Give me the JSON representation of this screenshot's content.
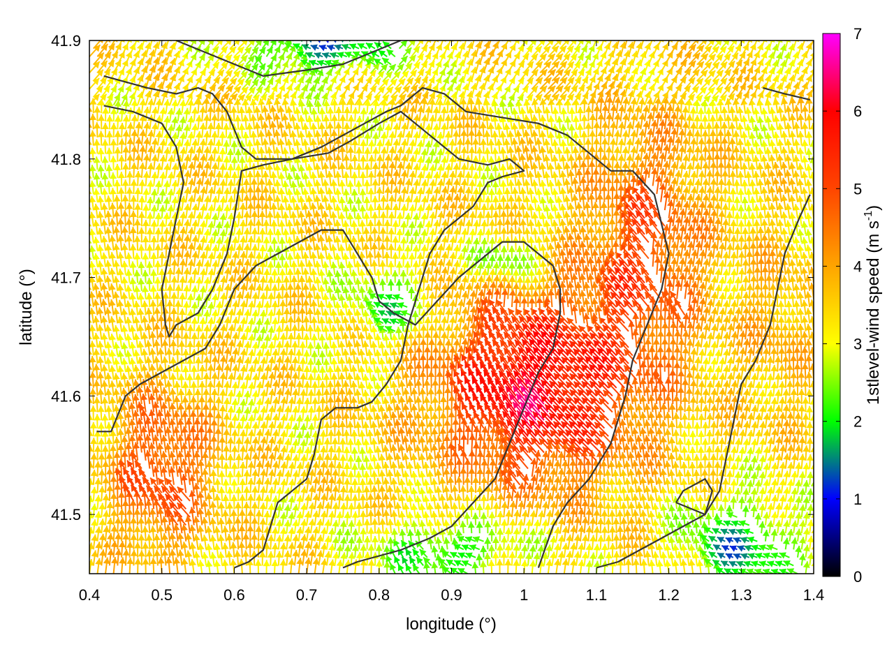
{
  "chart_data": {
    "type": "vector-field",
    "xlabel": "longitude (°)",
    "ylabel": "latitude (°)",
    "colorbar_label": "1stlevel-wind speed (m s",
    "colorbar_label_superscript": "-1",
    "colorbar_label_close": ")",
    "xlim": [
      0.4,
      1.4
    ],
    "ylim": [
      41.45,
      41.9
    ],
    "x_ticks": [
      0.4,
      0.5,
      0.6,
      0.7,
      0.8,
      0.9,
      1.0,
      1.1,
      1.2,
      1.3,
      1.4
    ],
    "x_tick_labels": [
      "0.4",
      "0.5",
      "0.6",
      "0.7",
      "0.8",
      "0.9",
      "1",
      "1.1",
      "1.2",
      "1.3",
      "1.4"
    ],
    "y_ticks": [
      41.5,
      41.6,
      41.7,
      41.8,
      41.9
    ],
    "y_tick_labels": [
      "41.5",
      "41.6",
      "41.7",
      "41.8",
      "41.9"
    ],
    "cb_range": [
      0,
      7
    ],
    "cb_ticks": [
      0,
      1,
      2,
      3,
      4,
      5,
      6,
      7
    ],
    "cb_tick_labels": [
      "0",
      "1",
      "2",
      "3",
      "4",
      "5",
      "6",
      "7"
    ],
    "palette": [
      [
        0,
        "#000000"
      ],
      [
        1,
        "#0000ff"
      ],
      [
        1.5,
        "#008080"
      ],
      [
        2,
        "#00ff00"
      ],
      [
        3,
        "#ffff00"
      ],
      [
        4,
        "#ffa500"
      ],
      [
        5,
        "#ff4500"
      ],
      [
        6,
        "#ff0000"
      ],
      [
        7,
        "#ff00ff"
      ]
    ],
    "contour_color": "#333333",
    "contours": [
      [
        [
          0.42,
          41.87
        ],
        [
          0.48,
          41.86
        ],
        [
          0.52,
          41.855
        ],
        [
          0.55,
          41.86
        ],
        [
          0.57,
          41.855
        ],
        [
          0.59,
          41.84
        ],
        [
          0.61,
          41.81
        ],
        [
          0.63,
          41.8
        ],
        [
          0.68,
          41.8
        ],
        [
          0.72,
          41.81
        ],
        [
          0.75,
          41.82
        ],
        [
          0.78,
          41.83
        ],
        [
          0.81,
          41.84
        ],
        [
          0.83,
          41.845
        ],
        [
          0.86,
          41.86
        ],
        [
          0.89,
          41.855
        ],
        [
          0.92,
          41.84
        ],
        [
          0.97,
          41.835
        ],
        [
          1.02,
          41.83
        ],
        [
          1.06,
          41.82
        ],
        [
          1.09,
          41.805
        ],
        [
          1.12,
          41.79
        ],
        [
          1.15,
          41.79
        ],
        [
          1.18,
          41.77
        ],
        [
          1.2,
          41.72
        ],
        [
          1.19,
          41.69
        ],
        [
          1.17,
          41.66
        ],
        [
          1.15,
          41.63
        ],
        [
          1.14,
          41.6
        ],
        [
          1.12,
          41.56
        ],
        [
          1.09,
          41.53
        ],
        [
          1.06,
          41.51
        ],
        [
          1.04,
          41.49
        ],
        [
          1.02,
          41.455
        ]
      ],
      [
        [
          0.42,
          41.845
        ],
        [
          0.46,
          41.84
        ],
        [
          0.5,
          41.83
        ],
        [
          0.52,
          41.81
        ],
        [
          0.53,
          41.78
        ],
        [
          0.52,
          41.75
        ],
        [
          0.51,
          41.72
        ],
        [
          0.5,
          41.69
        ],
        [
          0.505,
          41.66
        ],
        [
          0.51,
          41.65
        ],
        [
          0.52,
          41.66
        ],
        [
          0.55,
          41.67
        ],
        [
          0.57,
          41.69
        ],
        [
          0.59,
          41.72
        ],
        [
          0.6,
          41.75
        ],
        [
          0.61,
          41.79
        ],
        [
          0.64,
          41.795
        ],
        [
          0.68,
          41.8
        ],
        [
          0.73,
          41.805
        ],
        [
          0.76,
          41.815
        ],
        [
          0.8,
          41.83
        ],
        [
          0.83,
          41.84
        ],
        [
          0.86,
          41.825
        ],
        [
          0.88,
          41.815
        ],
        [
          0.91,
          41.8
        ],
        [
          0.95,
          41.795
        ],
        [
          0.98,
          41.8
        ],
        [
          1.0,
          41.79
        ],
        [
          0.97,
          41.785
        ],
        [
          0.95,
          41.78
        ],
        [
          0.93,
          41.76
        ],
        [
          0.91,
          41.75
        ],
        [
          0.89,
          41.74
        ],
        [
          0.87,
          41.72
        ],
        [
          0.86,
          41.7
        ],
        [
          0.85,
          41.68
        ],
        [
          0.84,
          41.66
        ],
        [
          0.83,
          41.63
        ],
        [
          0.81,
          41.61
        ],
        [
          0.79,
          41.595
        ],
        [
          0.77,
          41.59
        ],
        [
          0.74,
          41.59
        ],
        [
          0.72,
          41.58
        ],
        [
          0.71,
          41.55
        ],
        [
          0.7,
          41.53
        ],
        [
          0.68,
          41.52
        ],
        [
          0.66,
          41.51
        ],
        [
          0.65,
          41.49
        ],
        [
          0.64,
          41.47
        ],
        [
          0.62,
          41.46
        ],
        [
          0.6,
          41.455
        ]
      ],
      [
        [
          0.41,
          41.57
        ],
        [
          0.43,
          41.57
        ],
        [
          0.45,
          41.6
        ],
        [
          0.47,
          41.61
        ],
        [
          0.5,
          41.62
        ],
        [
          0.53,
          41.63
        ],
        [
          0.56,
          41.64
        ],
        [
          0.58,
          41.66
        ],
        [
          0.6,
          41.69
        ],
        [
          0.63,
          41.71
        ],
        [
          0.66,
          41.72
        ],
        [
          0.69,
          41.73
        ],
        [
          0.72,
          41.74
        ],
        [
          0.75,
          41.74
        ],
        [
          0.77,
          41.72
        ],
        [
          0.79,
          41.7
        ],
        [
          0.8,
          41.68
        ],
        [
          0.82,
          41.67
        ],
        [
          0.85,
          41.66
        ],
        [
          0.88,
          41.68
        ],
        [
          0.91,
          41.7
        ],
        [
          0.93,
          41.71
        ],
        [
          0.95,
          41.72
        ],
        [
          0.97,
          41.73
        ],
        [
          1.0,
          41.73
        ],
        [
          1.02,
          41.72
        ],
        [
          1.04,
          41.71
        ],
        [
          1.05,
          41.69
        ],
        [
          1.05,
          41.67
        ],
        [
          1.04,
          41.64
        ],
        [
          1.02,
          41.62
        ],
        [
          1.0,
          41.59
        ],
        [
          0.98,
          41.56
        ],
        [
          0.96,
          41.53
        ],
        [
          0.93,
          41.51
        ],
        [
          0.9,
          41.49
        ],
        [
          0.87,
          41.48
        ],
        [
          0.83,
          41.47
        ],
        [
          0.8,
          41.465
        ],
        [
          0.77,
          41.46
        ],
        [
          0.75,
          41.455
        ]
      ],
      [
        [
          1.1,
          41.455
        ],
        [
          1.13,
          41.46
        ],
        [
          1.16,
          41.47
        ],
        [
          1.19,
          41.48
        ],
        [
          1.22,
          41.49
        ],
        [
          1.25,
          41.5
        ],
        [
          1.27,
          41.52
        ],
        [
          1.28,
          41.55
        ],
        [
          1.29,
          41.58
        ],
        [
          1.3,
          41.61
        ],
        [
          1.32,
          41.63
        ],
        [
          1.34,
          41.66
        ],
        [
          1.35,
          41.69
        ],
        [
          1.36,
          41.72
        ],
        [
          1.38,
          41.75
        ],
        [
          1.395,
          41.77
        ]
      ],
      [
        [
          0.52,
          41.9
        ],
        [
          0.58,
          41.885
        ],
        [
          0.64,
          41.87
        ],
        [
          0.7,
          41.875
        ],
        [
          0.75,
          41.88
        ],
        [
          0.79,
          41.89
        ],
        [
          0.83,
          41.9
        ]
      ],
      [
        [
          1.33,
          41.86
        ],
        [
          1.36,
          41.855
        ],
        [
          1.395,
          41.85
        ]
      ],
      [
        [
          1.21,
          41.51
        ],
        [
          1.25,
          41.5
        ],
        [
          1.26,
          41.52
        ],
        [
          1.25,
          41.53
        ],
        [
          1.22,
          41.52
        ],
        [
          1.21,
          41.51
        ]
      ]
    ]
  }
}
